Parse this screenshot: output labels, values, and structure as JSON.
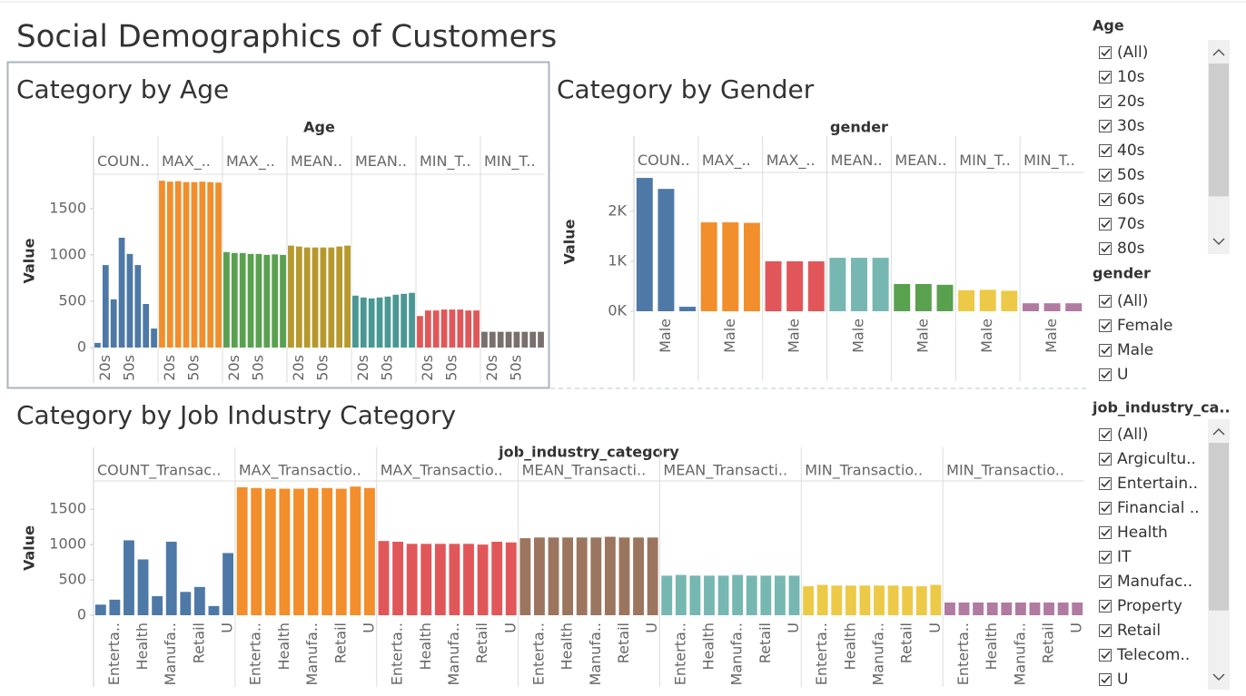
{
  "title": "Social Demographics of Customers",
  "chart_data": [
    {
      "type": "bar",
      "title": "Category by Age",
      "facet_label": "Age",
      "ylabel": "Value",
      "categories": [
        null,
        "20s",
        null,
        null,
        "50s",
        null,
        null,
        null
      ],
      "ylim": [
        0,
        1870
      ],
      "yticks": [
        0,
        500,
        1000,
        1500
      ],
      "panels": [
        {
          "name": "COUN..",
          "color": "#4e79a7",
          "values": [
            50,
            890,
            520,
            1185,
            1010,
            890,
            470,
            205
          ]
        },
        {
          "name": "MAX_..",
          "color": "#f28e2b",
          "values": [
            1800,
            1790,
            1795,
            1785,
            1785,
            1790,
            1785,
            1780
          ]
        },
        {
          "name": "MAX_..",
          "color": "#59a14f",
          "values": [
            1030,
            1020,
            1020,
            1010,
            1010,
            1000,
            1005,
            1000
          ]
        },
        {
          "name": "MEAN..",
          "color": "#b6992d",
          "values": [
            1100,
            1090,
            1080,
            1080,
            1080,
            1080,
            1090,
            1100
          ]
        },
        {
          "name": "MEAN..",
          "color": "#499894",
          "values": [
            560,
            540,
            530,
            540,
            550,
            570,
            580,
            590
          ]
        },
        {
          "name": "MIN_T..",
          "color": "#e15759",
          "values": [
            340,
            400,
            400,
            410,
            410,
            410,
            400,
            400
          ]
        },
        {
          "name": "MIN_T..",
          "color": "#79706e",
          "values": [
            170,
            170,
            170,
            170,
            170,
            170,
            170,
            170
          ]
        }
      ]
    },
    {
      "type": "bar",
      "title": "Category by Gender",
      "facet_label": "gender",
      "ylabel": "Value",
      "categories": [
        null,
        "Male",
        null
      ],
      "ylim": [
        0,
        2780
      ],
      "yticks": [
        {
          "value": 0,
          "label": "0K"
        },
        {
          "value": 1000,
          "label": "1K"
        },
        {
          "value": 2000,
          "label": "2K"
        }
      ],
      "panels": [
        {
          "name": "COUN..",
          "color": "#4e79a7",
          "values": [
            2670,
            2450,
            90
          ]
        },
        {
          "name": "MAX_..",
          "color": "#f28e2b",
          "values": [
            1780,
            1780,
            1770
          ]
        },
        {
          "name": "MAX_..",
          "color": "#e15759",
          "values": [
            1000,
            1000,
            1000
          ]
        },
        {
          "name": "MEAN..",
          "color": "#76b7b2",
          "values": [
            1070,
            1070,
            1070
          ]
        },
        {
          "name": "MEAN..",
          "color": "#59a14f",
          "values": [
            545,
            545,
            530
          ]
        },
        {
          "name": "MIN_T..",
          "color": "#edc948",
          "values": [
            420,
            430,
            410
          ]
        },
        {
          "name": "MIN_T..",
          "color": "#b07aa1",
          "values": [
            160,
            160,
            160
          ]
        }
      ]
    },
    {
      "type": "bar",
      "title": "Category by Job Industry Category",
      "facet_label": "job_industry_category",
      "ylabel": "Value",
      "categories": [
        null,
        "Enterta..",
        null,
        "Health",
        null,
        "Manufa..",
        null,
        "Retail",
        null,
        "U"
      ],
      "ylim": [
        0,
        1900
      ],
      "yticks": [
        0,
        500,
        1000,
        1500
      ],
      "panels": [
        {
          "name": "COUNT_Transac..",
          "color": "#4e79a7",
          "values": [
            150,
            220,
            1060,
            790,
            270,
            1040,
            330,
            400,
            130,
            880
          ]
        },
        {
          "name": "MAX_Transactio..",
          "color": "#f28e2b",
          "values": [
            1810,
            1800,
            1790,
            1790,
            1790,
            1800,
            1800,
            1790,
            1820,
            1800
          ]
        },
        {
          "name": "MAX_Transactio..",
          "color": "#e15759",
          "values": [
            1050,
            1040,
            1010,
            1010,
            1010,
            1010,
            1010,
            1000,
            1040,
            1030
          ]
        },
        {
          "name": "MEAN_Transacti..",
          "color": "#9c755f",
          "values": [
            1090,
            1100,
            1100,
            1100,
            1100,
            1100,
            1110,
            1100,
            1100,
            1100
          ]
        },
        {
          "name": "MEAN_Transacti..",
          "color": "#76b7b2",
          "values": [
            560,
            570,
            560,
            560,
            560,
            570,
            560,
            560,
            560,
            560
          ]
        },
        {
          "name": "MIN_Transactio..",
          "color": "#edc948",
          "values": [
            410,
            430,
            420,
            420,
            420,
            420,
            420,
            410,
            410,
            430
          ]
        },
        {
          "name": "MIN_Transactio..",
          "color": "#b07aa1",
          "values": [
            180,
            180,
            180,
            180,
            180,
            180,
            180,
            180,
            180,
            180
          ]
        }
      ]
    }
  ],
  "filters": [
    {
      "title": "Age",
      "items": [
        "(All)",
        "10s",
        "20s",
        "30s",
        "40s",
        "50s",
        "60s",
        "70s",
        "80s"
      ]
    },
    {
      "title": "gender",
      "items": [
        "(All)",
        "Female",
        "Male",
        "U"
      ]
    },
    {
      "title": "job_industry_ca..",
      "items": [
        "(All)",
        "Argicultu..",
        "Entertain..",
        "Financial ..",
        "Health",
        "IT",
        "Manufac..",
        "Property",
        "Retail",
        "Telecom..",
        "U"
      ]
    }
  ]
}
